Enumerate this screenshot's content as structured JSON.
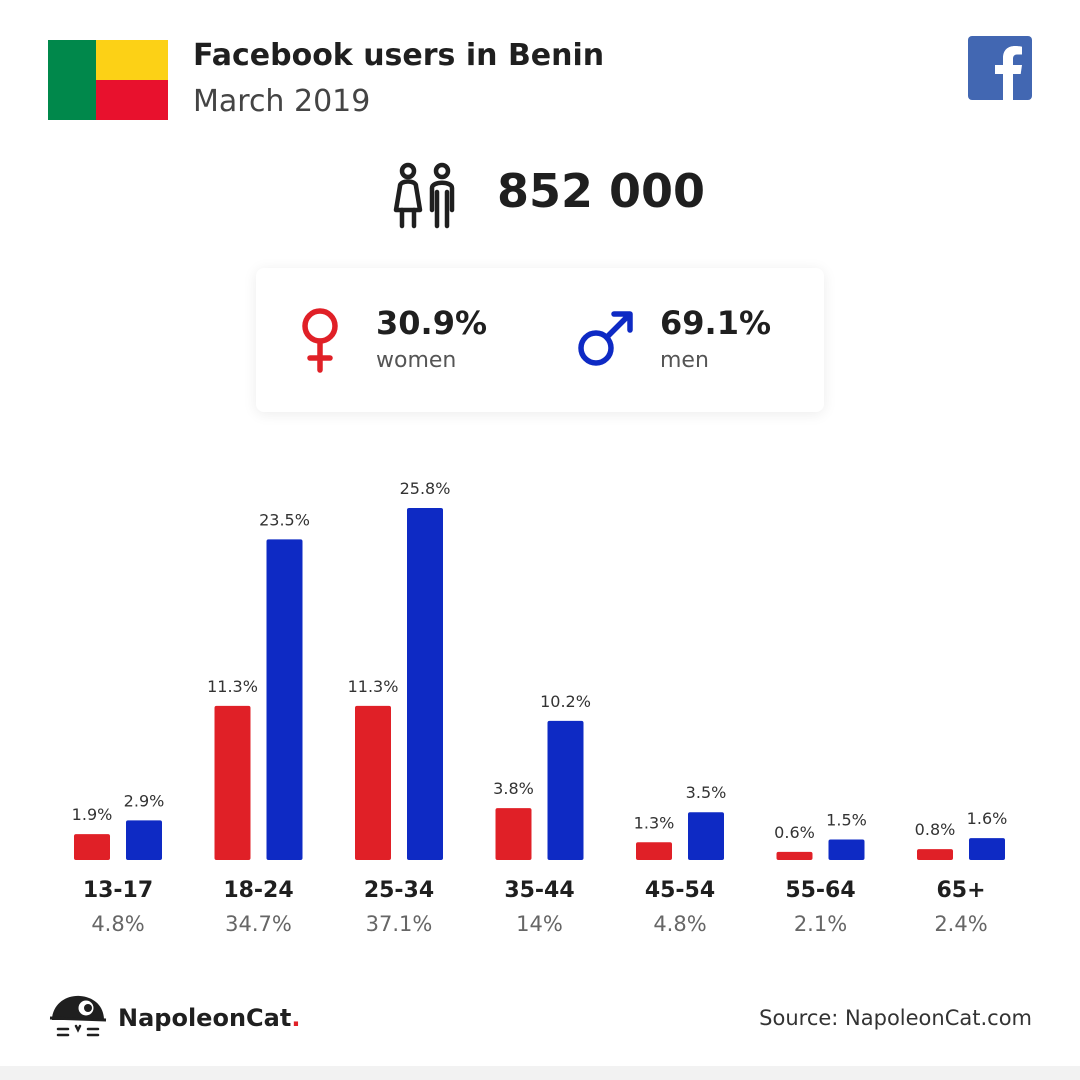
{
  "header": {
    "title": "Facebook users in Benin",
    "subtitle": "March 2019"
  },
  "total": {
    "value": "852 000"
  },
  "gender": {
    "women": {
      "pct": "30.9%",
      "label": "women"
    },
    "men": {
      "pct": "69.1%",
      "label": "men"
    }
  },
  "colors": {
    "women": "#e02027",
    "men": "#0e2ac4",
    "facebook": "#4267b2"
  },
  "icons": {
    "flag": "benin-flag-icon",
    "facebook": "facebook-icon",
    "users": "users-icon",
    "female": "female-icon",
    "male": "male-icon",
    "brand": "napoleoncat-icon"
  },
  "chart_data": {
    "type": "bar",
    "categories": [
      "13-17",
      "18-24",
      "25-34",
      "35-44",
      "45-54",
      "55-64",
      "65+"
    ],
    "series": [
      {
        "name": "women",
        "values": [
          1.9,
          11.3,
          11.3,
          3.8,
          1.3,
          0.6,
          0.8
        ],
        "labels": [
          "1.9%",
          "11.3%",
          "11.3%",
          "3.8%",
          "1.3%",
          "0.6%",
          "0.8%"
        ]
      },
      {
        "name": "men",
        "values": [
          2.9,
          23.5,
          25.8,
          10.2,
          3.5,
          1.5,
          1.6
        ],
        "labels": [
          "2.9%",
          "23.5%",
          "25.8%",
          "10.2%",
          "3.5%",
          "1.5%",
          "1.6%"
        ]
      }
    ],
    "totals": [
      "4.8%",
      "34.7%",
      "37.1%",
      "14%",
      "4.8%",
      "2.1%",
      "2.4%"
    ],
    "ylim": [
      0,
      25.8
    ],
    "grid": false
  },
  "footer": {
    "brand_name": "NapoleonCat",
    "brand_dot": ".",
    "source": "Source: NapoleonCat.com"
  }
}
